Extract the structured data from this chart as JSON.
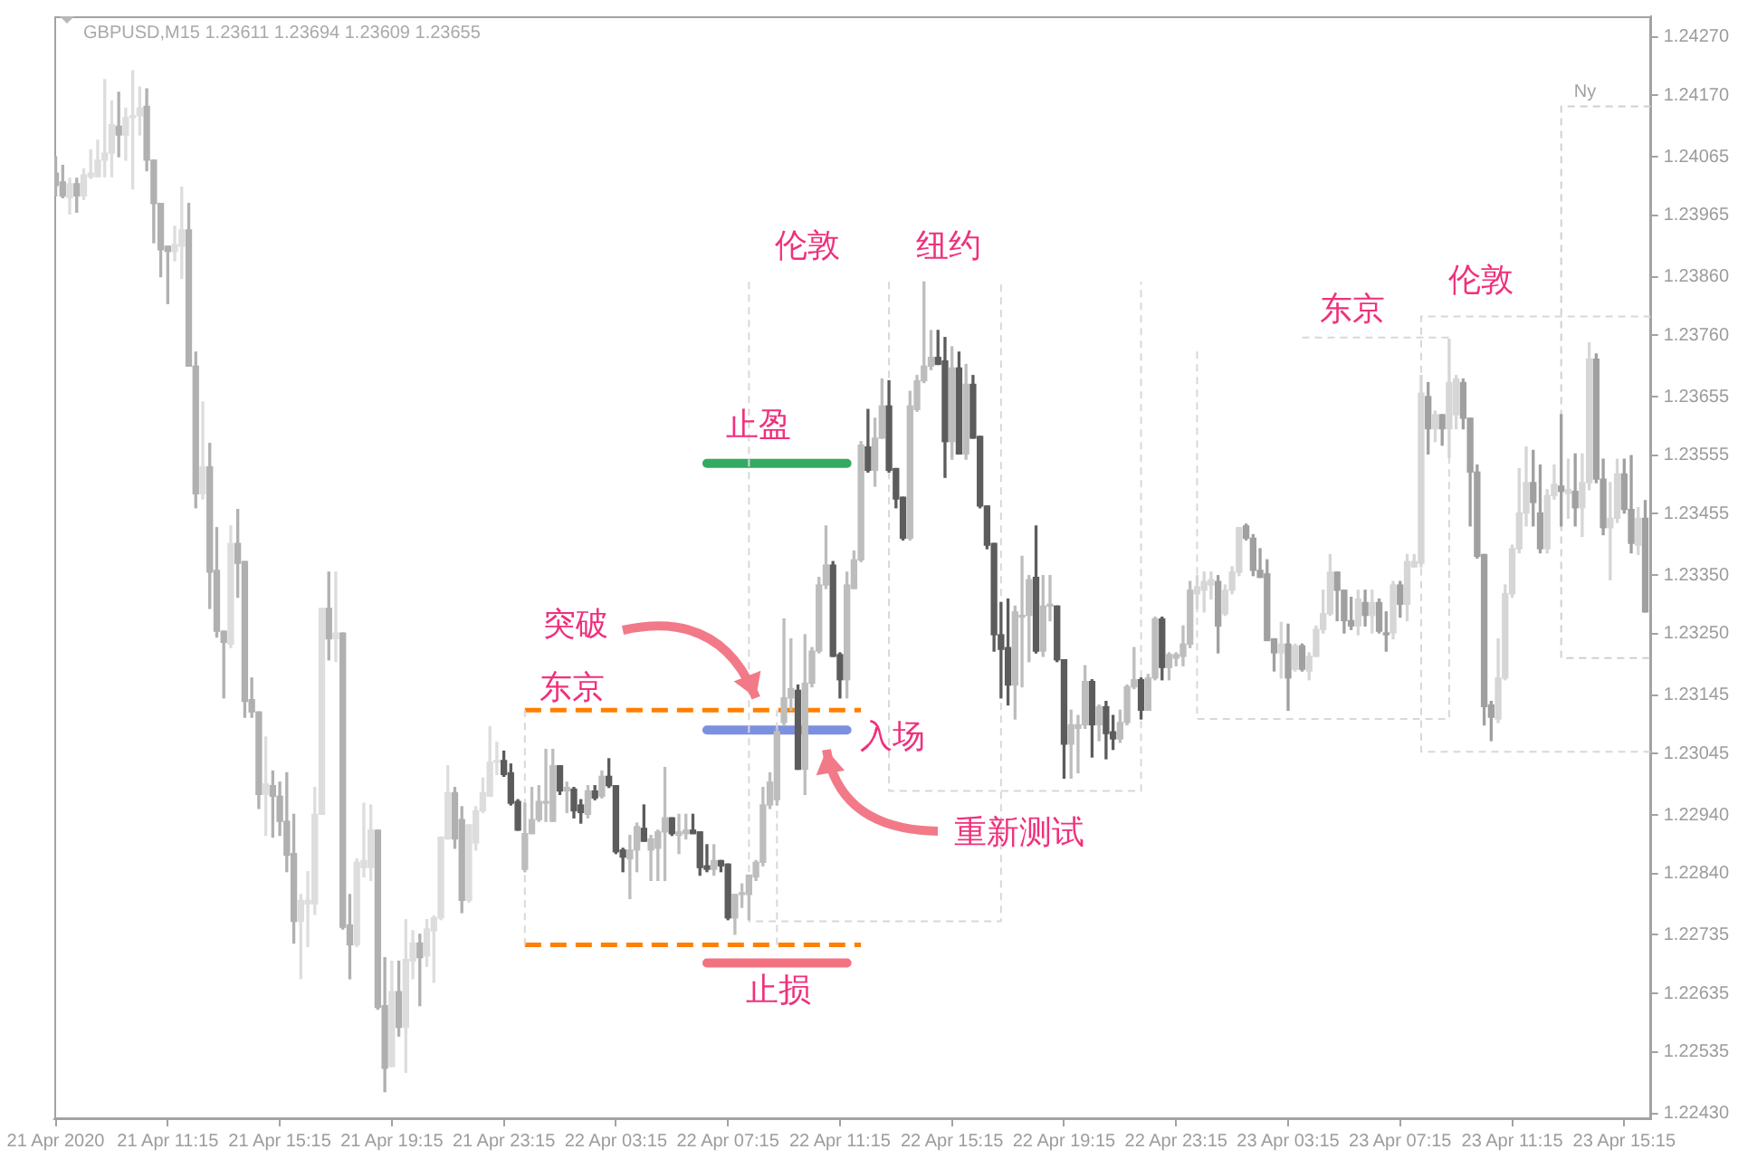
{
  "chart_data": {
    "type": "candlestick",
    "title": "GBPUSD,M15 1.23611 1.23694 1.23609 1.23655",
    "x": [
      "2020-04-21T07:15",
      "2020-04-21T07:30",
      "2020-04-21T07:45",
      "2020-04-21T08:00",
      "2020-04-21T08:15",
      "2020-04-21T08:30",
      "2020-04-21T08:45",
      "2020-04-21T09:00",
      "2020-04-21T09:15",
      "2020-04-21T09:30",
      "2020-04-21T09:45",
      "2020-04-21T10:00",
      "2020-04-21T10:15",
      "2020-04-21T10:30",
      "2020-04-21T10:45",
      "2020-04-21T11:00",
      "2020-04-21T11:15",
      "2020-04-21T11:30",
      "2020-04-21T11:45",
      "2020-04-21T12:00",
      "2020-04-21T12:15",
      "2020-04-21T12:30",
      "2020-04-21T12:45",
      "2020-04-21T13:00",
      "2020-04-21T13:15",
      "2020-04-21T13:30",
      "2020-04-21T13:45",
      "2020-04-21T14:00",
      "2020-04-21T14:15",
      "2020-04-21T14:30",
      "2020-04-21T14:45",
      "2020-04-21T15:00",
      "2020-04-21T15:15",
      "2020-04-21T15:30",
      "2020-04-21T15:45",
      "2020-04-21T16:00",
      "2020-04-21T16:15",
      "2020-04-21T16:30",
      "2020-04-21T16:45",
      "2020-04-21T17:00",
      "2020-04-21T17:15",
      "2020-04-21T17:30",
      "2020-04-21T17:45",
      "2020-04-21T18:00",
      "2020-04-21T18:15",
      "2020-04-21T18:30",
      "2020-04-21T18:45",
      "2020-04-21T19:00",
      "2020-04-21T19:15",
      "2020-04-21T19:30",
      "2020-04-21T19:45",
      "2020-04-21T20:00",
      "2020-04-21T20:15",
      "2020-04-21T20:30",
      "2020-04-21T20:45",
      "2020-04-21T21:00",
      "2020-04-21T21:15",
      "2020-04-21T21:30",
      "2020-04-21T21:45",
      "2020-04-21T22:00",
      "2020-04-21T22:15",
      "2020-04-21T22:30",
      "2020-04-21T22:45",
      "2020-04-21T23:00",
      "2020-04-21T23:15",
      "2020-04-21T23:30",
      "2020-04-21T23:45",
      "2020-04-22T00:00",
      "2020-04-22T00:15",
      "2020-04-22T00:30",
      "2020-04-22T00:45",
      "2020-04-22T01:00",
      "2020-04-22T01:15",
      "2020-04-22T01:30",
      "2020-04-22T01:45",
      "2020-04-22T02:00",
      "2020-04-22T02:15",
      "2020-04-22T02:30",
      "2020-04-22T02:45",
      "2020-04-22T03:00",
      "2020-04-22T03:15",
      "2020-04-22T03:30",
      "2020-04-22T03:45",
      "2020-04-22T04:00",
      "2020-04-22T04:15",
      "2020-04-22T04:30",
      "2020-04-22T04:45",
      "2020-04-22T05:00",
      "2020-04-22T05:15",
      "2020-04-22T05:30",
      "2020-04-22T05:45",
      "2020-04-22T06:00",
      "2020-04-22T06:15",
      "2020-04-22T06:30",
      "2020-04-22T06:45",
      "2020-04-22T07:00",
      "2020-04-22T07:15",
      "2020-04-22T07:30",
      "2020-04-22T07:45",
      "2020-04-22T08:00",
      "2020-04-22T08:15",
      "2020-04-22T08:30",
      "2020-04-22T08:45",
      "2020-04-22T09:00",
      "2020-04-22T09:15",
      "2020-04-22T09:30",
      "2020-04-22T09:45",
      "2020-04-22T10:00",
      "2020-04-22T10:15",
      "2020-04-22T10:30",
      "2020-04-22T10:45",
      "2020-04-22T11:00",
      "2020-04-22T11:15",
      "2020-04-22T11:30",
      "2020-04-22T11:45",
      "2020-04-22T12:00",
      "2020-04-22T12:15",
      "2020-04-22T12:30",
      "2020-04-22T12:45",
      "2020-04-22T13:00",
      "2020-04-22T13:15",
      "2020-04-22T13:30",
      "2020-04-22T13:45",
      "2020-04-22T14:00",
      "2020-04-22T14:15",
      "2020-04-22T14:30",
      "2020-04-22T14:45",
      "2020-04-22T15:00",
      "2020-04-22T15:15",
      "2020-04-22T15:30",
      "2020-04-22T15:45",
      "2020-04-22T16:00",
      "2020-04-22T16:15",
      "2020-04-22T16:30",
      "2020-04-22T16:45",
      "2020-04-22T17:00",
      "2020-04-22T17:15",
      "2020-04-22T17:30",
      "2020-04-22T17:45",
      "2020-04-22T18:00",
      "2020-04-22T18:15",
      "2020-04-22T18:30",
      "2020-04-22T18:45",
      "2020-04-22T19:00",
      "2020-04-22T19:15",
      "2020-04-22T19:30",
      "2020-04-22T19:45",
      "2020-04-22T20:00",
      "2020-04-22T20:15",
      "2020-04-22T20:30",
      "2020-04-22T20:45",
      "2020-04-22T21:00",
      "2020-04-22T21:15",
      "2020-04-22T21:30",
      "2020-04-22T21:45",
      "2020-04-22T22:00",
      "2020-04-22T22:15",
      "2020-04-22T22:30",
      "2020-04-22T22:45",
      "2020-04-22T23:00",
      "2020-04-22T23:15",
      "2020-04-22T23:30",
      "2020-04-22T23:45",
      "2020-04-23T00:00",
      "2020-04-23T00:15",
      "2020-04-23T00:30",
      "2020-04-23T00:45",
      "2020-04-23T01:00",
      "2020-04-23T01:15",
      "2020-04-23T01:30",
      "2020-04-23T01:45",
      "2020-04-23T02:00",
      "2020-04-23T02:15",
      "2020-04-23T02:30",
      "2020-04-23T02:45",
      "2020-04-23T03:00",
      "2020-04-23T03:15",
      "2020-04-23T03:30",
      "2020-04-23T03:45",
      "2020-04-23T04:00",
      "2020-04-23T04:15",
      "2020-04-23T04:30",
      "2020-04-23T04:45",
      "2020-04-23T05:00",
      "2020-04-23T05:15",
      "2020-04-23T05:30",
      "2020-04-23T05:45",
      "2020-04-23T06:00",
      "2020-04-23T06:15",
      "2020-04-23T06:30",
      "2020-04-23T06:45",
      "2020-04-23T07:00",
      "2020-04-23T07:15",
      "2020-04-23T07:30",
      "2020-04-23T07:45",
      "2020-04-23T08:00",
      "2020-04-23T08:15",
      "2020-04-23T08:30",
      "2020-04-23T08:45",
      "2020-04-23T09:00",
      "2020-04-23T09:15",
      "2020-04-23T09:30",
      "2020-04-23T09:45",
      "2020-04-23T10:00",
      "2020-04-23T10:15",
      "2020-04-23T10:30",
      "2020-04-23T10:45",
      "2020-04-23T11:00",
      "2020-04-23T11:15",
      "2020-04-23T11:30",
      "2020-04-23T11:45",
      "2020-04-23T12:00",
      "2020-04-23T12:15",
      "2020-04-23T12:30",
      "2020-04-23T12:45",
      "2020-04-23T13:00",
      "2020-04-23T13:15",
      "2020-04-23T13:30",
      "2020-04-23T13:45",
      "2020-04-23T14:00",
      "2020-04-23T14:15",
      "2020-04-23T14:30",
      "2020-04-23T14:45",
      "2020-04-23T15:00",
      "2020-04-23T15:15",
      "2020-04-23T15:30",
      "2020-04-23T15:45",
      "2020-04-23T16:00"
    ],
    "ohlc": [
      [
        1.24037,
        1.24065,
        1.23998,
        1.24016
      ],
      [
        1.24022,
        1.2405,
        1.23995,
        1.23998
      ],
      [
        1.23995,
        1.24028,
        1.23967,
        1.24019
      ],
      [
        1.24019,
        1.24028,
        1.2397,
        1.23998
      ],
      [
        1.23998,
        1.24044,
        1.23992,
        1.24034
      ],
      [
        1.24031,
        1.24077,
        1.24028,
        1.24037
      ],
      [
        1.24031,
        1.24093,
        1.24031,
        1.24059
      ],
      [
        1.24059,
        1.24197,
        1.24031,
        1.24071
      ],
      [
        1.24071,
        1.2416,
        1.24031,
        1.2412
      ],
      [
        1.24117,
        1.24175,
        1.24065,
        1.24102
      ],
      [
        1.24102,
        1.24148,
        1.24059,
        1.24132
      ],
      [
        1.24132,
        1.24212,
        1.2401,
        1.24135
      ],
      [
        1.24135,
        1.24184,
        1.24102,
        1.24148
      ],
      [
        1.24151,
        1.24181,
        1.24041,
        1.24059
      ],
      [
        1.24059,
        1.24059,
        1.23918,
        1.23985
      ],
      [
        1.23985,
        1.23985,
        1.2386,
        1.23906
      ],
      [
        1.23912,
        1.23912,
        1.23814,
        1.23903
      ],
      [
        1.23903,
        1.23946,
        1.23887,
        1.23915
      ],
      [
        1.23912,
        1.24013,
        1.23857,
        1.2394
      ],
      [
        1.2394,
        1.23985,
        1.23707,
        1.23707
      ],
      [
        1.23707,
        1.23731,
        1.23465,
        1.23489
      ],
      [
        1.23489,
        1.23646,
        1.2348,
        1.23535
      ],
      [
        1.23535,
        1.23575,
        1.23293,
        1.23355
      ],
      [
        1.23358,
        1.23431,
        1.23244,
        1.23254
      ],
      [
        1.23254,
        1.23254,
        1.2314,
        1.23235
      ],
      [
        1.23232,
        1.23434,
        1.23226,
        1.23404
      ],
      [
        1.23404,
        1.23462,
        1.23312,
        1.2337
      ],
      [
        1.23373,
        1.23373,
        1.23107,
        1.23134
      ],
      [
        1.23137,
        1.23174,
        1.23107,
        1.23116
      ],
      [
        1.23116,
        1.23116,
        1.22951,
        1.22975
      ],
      [
        1.22975,
        1.23073,
        1.22905,
        1.22993
      ],
      [
        1.2299,
        1.23015,
        1.22902,
        1.22972
      ],
      [
        1.22972,
        1.22996,
        1.22905,
        1.22929
      ],
      [
        1.22929,
        1.23012,
        1.22843,
        1.22871
      ],
      [
        1.22874,
        1.22941,
        1.22721,
        1.22758
      ],
      [
        1.22758,
        1.22804,
        1.2266,
        1.22794
      ],
      [
        1.22788,
        1.22843,
        1.22715,
        1.22794
      ],
      [
        1.22788,
        1.22987,
        1.2277,
        1.22941
      ],
      [
        1.22941,
        1.23293,
        1.22941,
        1.23293
      ],
      [
        1.23293,
        1.23355,
        1.23205,
        1.23241
      ],
      [
        1.23241,
        1.23355,
        1.23202,
        1.23251
      ],
      [
        1.23251,
        1.23251,
        1.22745,
        1.22748
      ],
      [
        1.22752,
        1.22804,
        1.2266,
        1.22718
      ],
      [
        1.22718,
        1.22865,
        1.22715,
        1.22859
      ],
      [
        1.2285,
        1.2296,
        1.22834,
        1.22862
      ],
      [
        1.2285,
        1.22957,
        1.22828,
        1.22914
      ],
      [
        1.22914,
        1.22914,
        1.22608,
        1.22611
      ],
      [
        1.22614,
        1.22696,
        1.22467,
        1.22507
      ],
      [
        1.2251,
        1.2269,
        1.2251,
        1.22638
      ],
      [
        1.22638,
        1.2269,
        1.22562,
        1.22577
      ],
      [
        1.22577,
        1.22761,
        1.225,
        1.22693
      ],
      [
        1.2269,
        1.22742,
        1.2266,
        1.22721
      ],
      [
        1.22721,
        1.22736,
        1.22614,
        1.22696
      ],
      [
        1.22699,
        1.22761,
        1.22681,
        1.22745
      ],
      [
        1.22742,
        1.22767,
        1.22654,
        1.22764
      ],
      [
        1.22764,
        1.22902,
        1.22761,
        1.22902
      ],
      [
        1.22899,
        1.23024,
        1.22899,
        1.22978
      ],
      [
        1.22978,
        1.22987,
        1.22883,
        1.22899
      ],
      [
        1.22932,
        1.22954,
        1.22773,
        1.22794
      ],
      [
        1.22794,
        1.22923,
        1.22791,
        1.22923
      ],
      [
        1.22892,
        1.22954,
        1.2288,
        1.22947
      ],
      [
        1.22947,
        1.23003,
        1.22944,
        1.22978
      ],
      [
        1.22972,
        1.23091,
        1.22972,
        1.2303
      ],
      [
        1.2303,
        1.23064,
        1.23009,
        1.23033
      ],
      [
        1.23033,
        1.23049,
        1.23006,
        1.23009
      ],
      [
        1.23012,
        1.23027,
        1.22957,
        1.2296
      ],
      [
        1.22963,
        1.22966,
        1.22914,
        1.22914
      ],
      [
        1.22847,
        1.2296,
        1.22843,
        1.22908
      ],
      [
        1.22908,
        1.22987,
        1.22908,
        1.22932
      ],
      [
        1.22932,
        1.2299,
        1.22929,
        1.22963
      ],
      [
        1.2296,
        1.23052,
        1.22929,
        1.2296
      ],
      [
        1.22929,
        1.23052,
        1.22929,
        1.23024
      ],
      [
        1.23024,
        1.23024,
        1.22975,
        1.22981
      ],
      [
        1.22981,
        1.22996,
        1.22944,
        1.22987
      ],
      [
        1.22984,
        1.22987,
        1.22935,
        1.22947
      ],
      [
        1.22957,
        1.22966,
        1.22926,
        1.22944
      ],
      [
        1.22941,
        1.2299,
        1.22935,
        1.22981
      ],
      [
        1.22981,
        1.2299,
        1.22966,
        1.22969
      ],
      [
        1.22972,
        1.23015,
        1.22969,
        1.23006
      ],
      [
        1.23006,
        1.23036,
        1.22987,
        1.2299
      ],
      [
        1.2299,
        1.2299,
        1.22874,
        1.22877
      ],
      [
        1.2288,
        1.22883,
        1.22843,
        1.22868
      ],
      [
        1.22865,
        1.22905,
        1.22797,
        1.2288
      ],
      [
        1.2288,
        1.22926,
        1.22843,
        1.2292
      ],
      [
        1.22917,
        1.22957,
        1.22895,
        1.22895
      ],
      [
        1.2288,
        1.22905,
        1.22828,
        1.22899
      ],
      [
        1.22883,
        1.22914,
        1.22828,
        1.22911
      ],
      [
        1.22911,
        1.23021,
        1.22828,
        1.22935
      ],
      [
        1.22935,
        1.22935,
        1.22905,
        1.22908
      ],
      [
        1.22905,
        1.22941,
        1.22874,
        1.22911
      ],
      [
        1.22908,
        1.22941,
        1.22899,
        1.22914
      ],
      [
        1.22914,
        1.22941,
        1.22908,
        1.22908
      ],
      [
        1.22911,
        1.22911,
        1.22837,
        1.2285
      ],
      [
        1.22853,
        1.22889,
        1.22843,
        1.22847
      ],
      [
        1.22847,
        1.22889,
        1.22837,
        1.22862
      ],
      [
        1.22862,
        1.22862,
        1.22843,
        1.22853
      ],
      [
        1.22856,
        1.22856,
        1.22761,
        1.22764
      ],
      [
        1.22764,
        1.22804,
        1.22736,
        1.22804
      ],
      [
        1.22804,
        1.22822,
        1.22782,
        1.22804
      ],
      [
        1.22804,
        1.22837,
        1.22761,
        1.22837
      ],
      [
        1.22834,
        1.22862,
        1.22828,
        1.22859
      ],
      [
        1.22859,
        1.22987,
        1.22853,
        1.22957
      ],
      [
        1.22957,
        1.23012,
        1.22951,
        1.22996
      ],
      [
        1.22966,
        1.23088,
        1.22957,
        1.23082
      ],
      [
        1.23098,
        1.23275,
        1.23094,
        1.2314
      ],
      [
        1.2314,
        1.23241,
        1.23119,
        1.23156
      ],
      [
        1.23153,
        1.23162,
        1.23018,
        1.23018
      ],
      [
        1.23018,
        1.23248,
        1.22975,
        1.23165
      ],
      [
        1.23165,
        1.23226,
        1.23159,
        1.2322
      ],
      [
        1.2322,
        1.23346,
        1.23217,
        1.23333
      ],
      [
        1.23333,
        1.23434,
        1.23327,
        1.23367
      ],
      [
        1.23367,
        1.23373,
        1.23211,
        1.23211
      ],
      [
        1.23214,
        1.23217,
        1.2314,
        1.23171
      ],
      [
        1.23171,
        1.23355,
        1.2314,
        1.23333
      ],
      [
        1.23327,
        1.23391,
        1.23327,
        1.23376
      ],
      [
        1.23376,
        1.23578,
        1.23373,
        1.23572
      ],
      [
        1.23569,
        1.23633,
        1.23526,
        1.23529
      ],
      [
        1.23529,
        1.23618,
        1.23502,
        1.23584
      ],
      [
        1.23584,
        1.23685,
        1.23584,
        1.23639
      ],
      [
        1.23639,
        1.23682,
        1.23526,
        1.23529
      ],
      [
        1.23532,
        1.23532,
        1.23465,
        1.2348
      ],
      [
        1.23483,
        1.23483,
        1.2341,
        1.23413
      ],
      [
        1.23413,
        1.23664,
        1.2341,
        1.23639
      ],
      [
        1.23633,
        1.23691,
        1.2363,
        1.23682
      ],
      [
        1.23682,
        1.23851,
        1.23679,
        1.23707
      ],
      [
        1.23707,
        1.23768,
        1.23701,
        1.23722
      ],
      [
        1.23722,
        1.23768,
        1.2371,
        1.2371
      ],
      [
        1.23716,
        1.23756,
        1.23517,
        1.23578
      ],
      [
        1.23578,
        1.2374,
        1.23548,
        1.23704
      ],
      [
        1.23704,
        1.23731,
        1.23557,
        1.23557
      ],
      [
        1.23557,
        1.2371,
        1.23548,
        1.23676
      ],
      [
        1.23676,
        1.23691,
        1.23584,
        1.23584
      ],
      [
        1.23587,
        1.23587,
        1.23465,
        1.23468
      ],
      [
        1.23468,
        1.23468,
        1.23395,
        1.23401
      ],
      [
        1.23404,
        1.23404,
        1.2322,
        1.23248
      ],
      [
        1.23248,
        1.23303,
        1.2314,
        1.23223
      ],
      [
        1.23226,
        1.23309,
        1.23128,
        1.23162
      ],
      [
        1.23162,
        1.23297,
        1.23104,
        1.23287
      ],
      [
        1.23278,
        1.23382,
        1.23159,
        1.23281
      ],
      [
        1.23281,
        1.23349,
        1.23202,
        1.23342
      ],
      [
        1.23346,
        1.23434,
        1.23217,
        1.2322
      ],
      [
        1.2322,
        1.23349,
        1.23211,
        1.23297
      ],
      [
        1.23297,
        1.23349,
        1.23272,
        1.23297
      ],
      [
        1.23297,
        1.23297,
        1.23202,
        1.23205
      ],
      [
        1.23205,
        1.23205,
        1.23003,
        1.23061
      ],
      [
        1.23061,
        1.23119,
        1.23003,
        1.23094
      ],
      [
        1.23088,
        1.2311,
        1.23012,
        1.23094
      ],
      [
        1.23094,
        1.23195,
        1.23088,
        1.23168
      ],
      [
        1.23168,
        1.23171,
        1.23039,
        1.23094
      ],
      [
        1.23094,
        1.23128,
        1.23067,
        1.23125
      ],
      [
        1.23125,
        1.23134,
        1.23036,
        1.23079
      ],
      [
        1.23082,
        1.2311,
        1.23052,
        1.2307
      ],
      [
        1.2307,
        1.23119,
        1.23064,
        1.23098
      ],
      [
        1.23098,
        1.23162,
        1.23094,
        1.23159
      ],
      [
        1.23159,
        1.23226,
        1.23156,
        1.23171
      ],
      [
        1.23171,
        1.23174,
        1.23104,
        1.23119
      ],
      [
        1.23119,
        1.2318,
        1.23119,
        1.23174
      ],
      [
        1.23174,
        1.23278,
        1.23171,
        1.23275
      ],
      [
        1.23275,
        1.23278,
        1.23171,
        1.23192
      ],
      [
        1.23192,
        1.23217,
        1.23171,
        1.23214
      ],
      [
        1.23208,
        1.23217,
        1.23195,
        1.23214
      ],
      [
        1.23211,
        1.23263,
        1.23195,
        1.23232
      ],
      [
        1.23232,
        1.23339,
        1.23226,
        1.23324
      ],
      [
        1.23318,
        1.23349,
        1.23293,
        1.2333
      ],
      [
        1.23324,
        1.23355,
        1.23287,
        1.23339
      ],
      [
        1.23333,
        1.23355,
        1.23309,
        1.23342
      ],
      [
        1.23339,
        1.23349,
        1.23217,
        1.23263
      ],
      [
        1.23284,
        1.23333,
        1.23281,
        1.23324
      ],
      [
        1.23324,
        1.23364,
        1.23318,
        1.23355
      ],
      [
        1.23355,
        1.23431,
        1.23349,
        1.23431
      ],
      [
        1.23434,
        1.23437,
        1.2341,
        1.23413
      ],
      [
        1.23413,
        1.23419,
        1.23349,
        1.23358
      ],
      [
        1.23358,
        1.23395,
        1.23346,
        1.23346
      ],
      [
        1.23352,
        1.23376,
        1.23238,
        1.23238
      ],
      [
        1.23241,
        1.23241,
        1.23186,
        1.23217
      ],
      [
        1.23217,
        1.23269,
        1.23174,
        1.23232
      ],
      [
        1.23232,
        1.23266,
        1.23119,
        1.23174
      ],
      [
        1.23189,
        1.23232,
        1.23186,
        1.23229
      ],
      [
        1.23229,
        1.23232,
        1.23186,
        1.23189
      ],
      [
        1.23186,
        1.23217,
        1.23171,
        1.23211
      ],
      [
        1.23211,
        1.23263,
        1.23211,
        1.23257
      ],
      [
        1.23257,
        1.23324,
        1.23251,
        1.23284
      ],
      [
        1.23284,
        1.23385,
        1.23281,
        1.23355
      ],
      [
        1.23355,
        1.23355,
        1.23272,
        1.23324
      ],
      [
        1.23324,
        1.23324,
        1.23251,
        1.23272
      ],
      [
        1.23272,
        1.23312,
        1.23257,
        1.23263
      ],
      [
        1.23263,
        1.23324,
        1.23248,
        1.23309
      ],
      [
        1.23303,
        1.23324,
        1.23263,
        1.23281
      ],
      [
        1.23281,
        1.23324,
        1.23251,
        1.23303
      ],
      [
        1.23303,
        1.23309,
        1.23251,
        1.23254
      ],
      [
        1.23251,
        1.23287,
        1.2322,
        1.23248
      ],
      [
        1.23251,
        1.23339,
        1.23241,
        1.23333
      ],
      [
        1.23333,
        1.23339,
        1.23278,
        1.233
      ],
      [
        1.233,
        1.23385,
        1.23272,
        1.23373
      ],
      [
        1.23364,
        1.23385,
        1.23364,
        1.23373
      ],
      [
        1.2337,
        1.23691,
        1.23364,
        1.23661
      ],
      [
        1.23655,
        1.23679,
        1.23557,
        1.236
      ],
      [
        1.236,
        1.2363,
        1.23578,
        1.23624
      ],
      [
        1.23624,
        1.23624,
        1.23572,
        1.236
      ],
      [
        1.236,
        1.23753,
        1.23551,
        1.23679
      ],
      [
        1.23624,
        1.23691,
        1.236,
        1.23685
      ],
      [
        1.23679,
        1.23685,
        1.236,
        1.23618
      ],
      [
        1.23618,
        1.23618,
        1.23434,
        1.23526
      ],
      [
        1.23526,
        1.23538,
        1.23379,
        1.23382
      ],
      [
        1.23385,
        1.23385,
        1.23094,
        1.23125
      ],
      [
        1.23128,
        1.23134,
        1.23067,
        1.23107
      ],
      [
        1.23104,
        1.23241,
        1.23098,
        1.23174
      ],
      [
        1.23174,
        1.23333,
        1.23171,
        1.23318
      ],
      [
        1.23318,
        1.23401,
        1.23312,
        1.23395
      ],
      [
        1.23395,
        1.23532,
        1.23388,
        1.23456
      ],
      [
        1.23456,
        1.23569,
        1.23434,
        1.23508
      ],
      [
        1.23508,
        1.23563,
        1.23434,
        1.23474
      ],
      [
        1.23456,
        1.23538,
        1.23388,
        1.23395
      ],
      [
        1.23395,
        1.23496,
        1.23388,
        1.23486
      ],
      [
        1.23486,
        1.23538,
        1.2348,
        1.23505
      ],
      [
        1.23502,
        1.23624,
        1.23434,
        1.23493
      ],
      [
        1.23489,
        1.23548,
        1.23447,
        1.23496
      ],
      [
        1.23493,
        1.23557,
        1.23434,
        1.23465
      ],
      [
        1.23465,
        1.23557,
        1.23416,
        1.23508
      ],
      [
        1.23508,
        1.23747,
        1.23496,
        1.23719
      ],
      [
        1.23719,
        1.23728,
        1.23508,
        1.23514
      ],
      [
        1.23514,
        1.23548,
        1.23419,
        1.23431
      ],
      [
        1.23431,
        1.23508,
        1.23342,
        1.23447
      ],
      [
        1.23447,
        1.23548,
        1.2344,
        1.23523
      ],
      [
        1.23523,
        1.23548,
        1.23456,
        1.23462
      ],
      [
        1.23462,
        1.23554,
        1.23388,
        1.23404
      ],
      [
        1.23401,
        1.23465,
        1.23385,
        1.23447
      ],
      [
        1.23447,
        1.23477,
        1.23287,
        1.23287
      ]
    ],
    "colors": [
      "#b0b0b0",
      "#b0b0b0",
      "#dddddd",
      "#b0b0b0",
      "#dddddd",
      "#dddddd",
      "#dddddd",
      "#dddddd",
      "#dddddd",
      "#b0b0b0",
      "#dddddd",
      "#dddddd",
      "#dddddd",
      "#b0b0b0",
      "#b0b0b0",
      "#b0b0b0",
      "#b0b0b0",
      "#dddddd",
      "#dddddd",
      "#b0b0b0",
      "#b0b0b0",
      "#dddddd",
      "#b0b0b0",
      "#b0b0b0",
      "#b0b0b0",
      "#dddddd",
      "#b0b0b0",
      "#b0b0b0",
      "#b0b0b0",
      "#b0b0b0",
      "#dddddd",
      "#b0b0b0",
      "#b0b0b0",
      "#b0b0b0",
      "#b0b0b0",
      "#dddddd",
      "#dddddd",
      "#dddddd",
      "#dddddd",
      "#b0b0b0",
      "#dddddd",
      "#b0b0b0",
      "#b0b0b0",
      "#dddddd",
      "#dddddd",
      "#dddddd",
      "#b0b0b0",
      "#b0b0b0",
      "#dddddd",
      "#b0b0b0",
      "#dddddd",
      "#dddddd",
      "#b0b0b0",
      "#dddddd",
      "#dddddd",
      "#dddddd",
      "#dddddd",
      "#b0b0b0",
      "#b0b0b0",
      "#dddddd",
      "#dddddd",
      "#dddddd",
      "#dddddd",
      "#dddddd",
      "#5c5c5c",
      "#5c5c5c",
      "#5c5c5c",
      "#bdbdbd",
      "#bdbdbd",
      "#bdbdbd",
      "#bdbdbd",
      "#bdbdbd",
      "#5c5c5c",
      "#bdbdbd",
      "#5c5c5c",
      "#5c5c5c",
      "#bdbdbd",
      "#5c5c5c",
      "#bdbdbd",
      "#5c5c5c",
      "#5c5c5c",
      "#5c5c5c",
      "#bdbdbd",
      "#bdbdbd",
      "#5c5c5c",
      "#bdbdbd",
      "#bdbdbd",
      "#bdbdbd",
      "#5c5c5c",
      "#bdbdbd",
      "#bdbdbd",
      "#5c5c5c",
      "#5c5c5c",
      "#5c5c5c",
      "#bdbdbd",
      "#5c5c5c",
      "#5c5c5c",
      "#bdbdbd",
      "#bdbdbd",
      "#bdbdbd",
      "#bdbdbd",
      "#bdbdbd",
      "#bdbdbd",
      "#bdbdbd",
      "#bdbdbd",
      "#bdbdbd",
      "#5c5c5c",
      "#bdbdbd",
      "#bdbdbd",
      "#bdbdbd",
      "#bdbdbd",
      "#5c5c5c",
      "#5c5c5c",
      "#bdbdbd",
      "#bdbdbd",
      "#bdbdbd",
      "#5c5c5c",
      "#bdbdbd",
      "#bdbdbd",
      "#5c5c5c",
      "#5c5c5c",
      "#5c5c5c",
      "#bdbdbd",
      "#bdbdbd",
      "#bdbdbd",
      "#bdbdbd",
      "#5c5c5c",
      "#5c5c5c",
      "#bdbdbd",
      "#5c5c5c",
      "#bdbdbd",
      "#5c5c5c",
      "#5c5c5c",
      "#5c5c5c",
      "#5c5c5c",
      "#5c5c5c",
      "#5c5c5c",
      "#bdbdbd",
      "#bdbdbd",
      "#bdbdbd",
      "#5c5c5c",
      "#bdbdbd",
      "#bdbdbd",
      "#5c5c5c",
      "#5c5c5c",
      "#bdbdbd",
      "#bdbdbd",
      "#bdbdbd",
      "#5c5c5c",
      "#bdbdbd",
      "#5c5c5c",
      "#5c5c5c",
      "#bdbdbd",
      "#bdbdbd",
      "#bdbdbd",
      "#5c5c5c",
      "#bdbdbd",
      "#bdbdbd",
      "#5c5c5c",
      "#bdbdbd",
      "#bdbdbd",
      "#bdbdbd",
      "#bdbdbd",
      "#d6d6d6",
      "#d6d6d6",
      "#d6d6d6",
      "#a0a0a0",
      "#d6d6d6",
      "#d6d6d6",
      "#d6d6d6",
      "#a0a0a0",
      "#a0a0a0",
      "#a0a0a0",
      "#a0a0a0",
      "#a0a0a0",
      "#d6d6d6",
      "#a0a0a0",
      "#d6d6d6",
      "#a0a0a0",
      "#d6d6d6",
      "#d6d6d6",
      "#d6d6d6",
      "#d6d6d6",
      "#a0a0a0",
      "#a0a0a0",
      "#a0a0a0",
      "#d6d6d6",
      "#a0a0a0",
      "#d6d6d6",
      "#a0a0a0",
      "#a0a0a0",
      "#d6d6d6",
      "#a0a0a0",
      "#d6d6d6",
      "#d6d6d6",
      "#d6d6d6",
      "#a0a0a0",
      "#d6d6d6",
      "#a0a0a0",
      "#d6d6d6",
      "#d6d6d6",
      "#a0a0a0",
      "#a0a0a0",
      "#a0a0a0",
      "#a0a0a0",
      "#a0a0a0",
      "#d6d6d6",
      "#d6d6d6",
      "#d6d6d6",
      "#d6d6d6",
      "#d6d6d6",
      "#a0a0a0",
      "#a0a0a0",
      "#d6d6d6",
      "#d6d6d6",
      "#a0a0a0",
      "#d6d6d6",
      "#a0a0a0",
      "#d6d6d6",
      "#d6d6d6",
      "#a0a0a0",
      "#a0a0a0",
      "#d6d6d6",
      "#d6d6d6",
      "#a0a0a0",
      "#a0a0a0",
      "#d6d6d6",
      "#a0a0a0"
    ],
    "series": [
      {
        "type": "line",
        "color": "#d8d8d8",
        "line_style": "dashed",
        "x": [
          "2020-04-22T00:00",
          "2020-04-22T00:00",
          "2020-04-22T04:30",
          "2020-04-22T09:00",
          "2020-04-22T09:00"
        ],
        "values": [
          1.23119,
          1.22718,
          null,
          1.22718,
          1.23119
        ]
      },
      {
        "type": "line",
        "color": "#d8d8d8",
        "line_style": "dashed",
        "x": [
          "2020-04-22T08:00",
          "2020-04-22T08:00",
          "2020-04-22T17:00",
          "2020-04-22T17:00"
        ],
        "values": [
          1.23851,
          1.22758,
          1.22758,
          1.23851
        ]
      },
      {
        "type": "line",
        "color": "#d8d8d8",
        "line_style": "dashed",
        "x": [
          "2020-04-22T13:00",
          "2020-04-22T13:00",
          "2020-04-22T22:00",
          "2020-04-22T22:00"
        ],
        "values": [
          1.23851,
          1.22981,
          1.22981,
          1.23851
        ]
      },
      {
        "type": "line",
        "color": "#d8d8d8",
        "line_style": "dashed",
        "x": [
          "2020-04-23T03:45",
          "2020-04-23T09:00",
          "2020-04-23T09:00",
          "2020-04-23T00:00",
          "2020-04-23T00:00"
        ],
        "values": [
          1.23756,
          1.23756,
          1.23104,
          1.23104,
          1.2374
        ]
      },
      {
        "type": "line",
        "color": "#d8d8d8",
        "line_style": "dashed",
        "x": [
          "2020-04-23T16:12",
          "2020-04-23T08:00",
          "2020-04-23T08:00",
          "2020-04-23T16:12"
        ],
        "values": [
          1.23792,
          1.23792,
          1.23048,
          1.23048
        ]
      },
      {
        "type": "line",
        "name": "Ny",
        "color": "#d0d0d0",
        "line_style": "dashed",
        "x": [
          "2020-04-23T16:12",
          "2020-04-23T13:00",
          "2020-04-23T13:00",
          "2020-04-23T16:12"
        ],
        "values": [
          1.24151,
          1.24151,
          1.23208,
          1.23208
        ]
      },
      {
        "type": "line",
        "color": "#ff7f00",
        "line_style": "dashed",
        "x": [
          "2020-04-22T00:00",
          "2020-04-22T12:00"
        ],
        "values": [
          1.23119,
          1.23119
        ]
      },
      {
        "type": "line",
        "color": "#ff7f00",
        "line_style": "dashed",
        "x": [
          "2020-04-22T00:00",
          "2020-04-22T12:00"
        ],
        "values": [
          1.22718,
          1.22718
        ]
      },
      {
        "type": "line",
        "color": "#33aa62",
        "line_style": "solid",
        "x": [
          "2020-04-22T06:30",
          "2020-04-22T11:30"
        ],
        "values": [
          1.23541,
          1.23541
        ]
      },
      {
        "type": "line",
        "color": "#7d90e0",
        "line_style": "solid",
        "x": [
          "2020-04-22T06:30",
          "2020-04-22T11:30"
        ],
        "values": [
          1.23085,
          1.23085
        ]
      },
      {
        "type": "line",
        "color": "#f27282",
        "line_style": "solid",
        "x": [
          "2020-04-22T06:30",
          "2020-04-22T11:30"
        ],
        "values": [
          1.22687,
          1.22687
        ]
      }
    ],
    "annotations": [
      "伦敦",
      "纽约",
      "东京",
      {
        "text": "突破",
        "x": "2020-04-22T08:15",
        "y": 1.2314
      },
      "止盈",
      {
        "text": "入场",
        "x": "2020-04-22T13:07",
        "y": 1.2307
      },
      "重新测试",
      "止损",
      "东京",
      "伦敦"
    ],
    "xlim": [
      "2020-04-21T07:12",
      "2020-04-23T16:12"
    ],
    "xticks": [
      {
        "value": "2020-04-21T07:15",
        "label": "21 Apr 2020"
      },
      {
        "value": "2020-04-21T11:15",
        "label": "21 Apr 11:15"
      },
      {
        "value": "2020-04-21T15:15",
        "label": "21 Apr 15:15"
      },
      {
        "value": "2020-04-21T19:15",
        "label": "21 Apr 19:15"
      },
      {
        "value": "2020-04-21T23:15",
        "label": "21 Apr 23:15"
      },
      {
        "value": "2020-04-22T03:15",
        "label": "22 Apr 03:15"
      },
      {
        "value": "2020-04-22T07:15",
        "label": "22 Apr 07:15"
      },
      {
        "value": "2020-04-22T11:15",
        "label": "22 Apr 11:15"
      },
      {
        "value": "2020-04-22T15:15",
        "label": "22 Apr 15:15"
      },
      {
        "value": "2020-04-22T19:15",
        "label": "22 Apr 19:15"
      },
      {
        "value": "2020-04-22T23:15",
        "label": "22 Apr 23:15"
      },
      {
        "value": "2020-04-23T03:15",
        "label": "23 Apr 03:15"
      },
      {
        "value": "2020-04-23T07:15",
        "label": "23 Apr 07:15"
      },
      {
        "value": "2020-04-23T11:15",
        "label": "23 Apr 11:15"
      },
      {
        "value": "2020-04-23T15:15",
        "label": "23 Apr 15:15"
      }
    ],
    "ylim": [
      1.2242,
      1.24305
    ],
    "yticks": [
      {
        "value": 1.2427,
        "label": "1.24270"
      },
      {
        "value": 1.2417,
        "label": "1.24170"
      },
      1.24065,
      1.23965,
      {
        "value": 1.2386,
        "label": "1.23860"
      },
      {
        "value": 1.2376,
        "label": "1.23760"
      },
      1.23655,
      1.23555,
      1.23455,
      {
        "value": 1.2335,
        "label": "1.23350"
      },
      {
        "value": 1.2325,
        "label": "1.23250"
      },
      1.23145,
      1.23045,
      {
        "value": 1.2294,
        "label": "1.22940"
      },
      {
        "value": 1.2284,
        "label": "1.22840"
      },
      1.22735,
      1.22635,
      1.22535,
      {
        "value": 1.2243,
        "label": "1.22430"
      }
    ],
    "grid": false,
    "legend": false
  }
}
